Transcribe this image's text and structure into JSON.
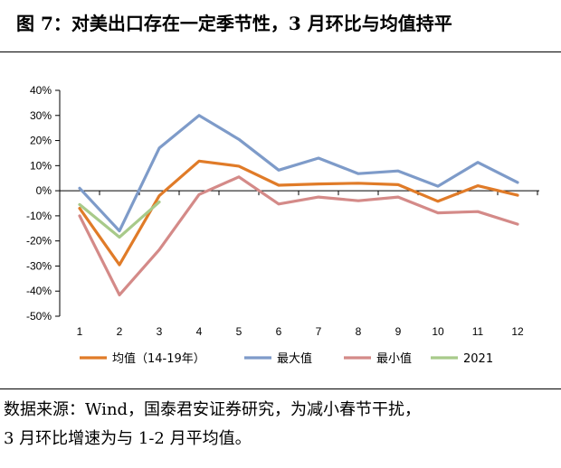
{
  "header": {
    "title": "图 7：对美出口存在一定季节性，3 月环比与均值持平"
  },
  "chart_data": {
    "type": "line",
    "title": "",
    "xlabel": "",
    "ylabel": "",
    "x": [
      1,
      2,
      3,
      4,
      5,
      6,
      7,
      8,
      9,
      10,
      11,
      12
    ],
    "categories": [
      "1",
      "2",
      "3",
      "4",
      "5",
      "6",
      "7",
      "8",
      "9",
      "10",
      "11",
      "12"
    ],
    "ylim": [
      -50,
      40
    ],
    "yticks": [
      40,
      30,
      20,
      10,
      0,
      -10,
      -20,
      -30,
      -40,
      -50
    ],
    "ytick_labels": [
      "40%",
      "30%",
      "20%",
      "10%",
      "0%",
      "-10%",
      "-20%",
      "-30%",
      "-40%",
      "-50%"
    ],
    "grid": false,
    "legend_position": "bottom",
    "series": [
      {
        "name": "均值（14-19年）",
        "color": "#E07B28",
        "values": [
          -7,
          -29.5,
          -2,
          11.8,
          9.8,
          2.2,
          2.7,
          3.0,
          2.4,
          -4.2,
          2.0,
          -1.8
        ]
      },
      {
        "name": "最大值",
        "color": "#7E9BC9",
        "values": [
          1.0,
          -16,
          17,
          30,
          20.5,
          8.2,
          13.0,
          6.8,
          7.9,
          1.8,
          11.3,
          3.3
        ]
      },
      {
        "name": "最小值",
        "color": "#D48A88",
        "values": [
          -10,
          -41.5,
          -23.5,
          -1.5,
          5.5,
          -5.3,
          -2.5,
          -4.0,
          -2.5,
          -8.8,
          -8.3,
          -13.3
        ]
      },
      {
        "name": "2021",
        "color": "#A8CA8A",
        "values": [
          -5.5,
          -18.5,
          -4.5,
          null,
          null,
          null,
          null,
          null,
          null,
          null,
          null,
          null
        ]
      }
    ]
  },
  "footer": {
    "source_line1": "数据来源：Wind，国泰君安证券研究，为减小春节干扰，",
    "source_line2": "3 月环比增速为与 1-2 月平均值。"
  }
}
